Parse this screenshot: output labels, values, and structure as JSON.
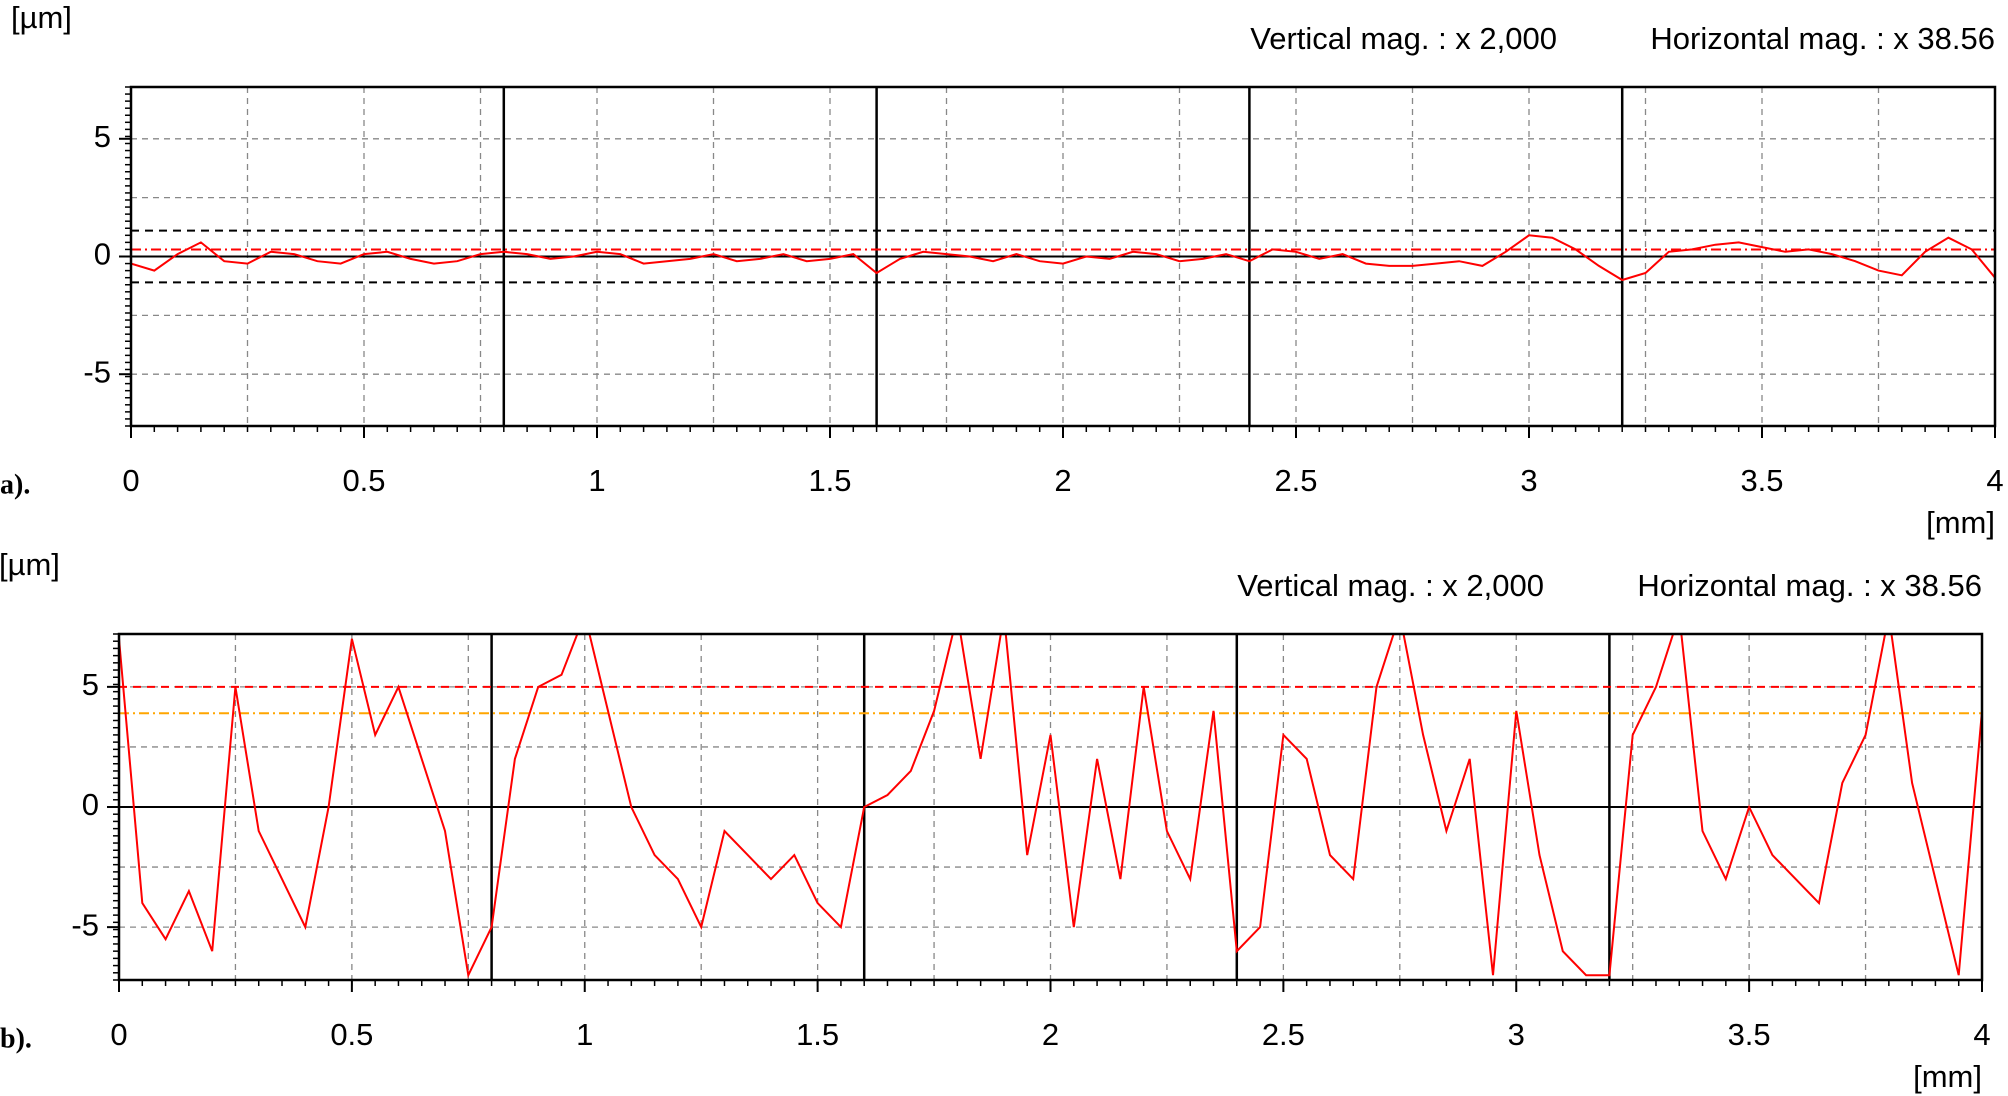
{
  "chart_data": [
    {
      "type": "line",
      "label": "a).",
      "ylabel": "[µm]",
      "xlabel": "[mm]",
      "annotations": [
        "Vertical mag. : x 2,000",
        "Horizontal mag. : x 38.56"
      ],
      "xlim": [
        0,
        4
      ],
      "ylim": [
        -7.2,
        7.2
      ],
      "xticks": [
        0,
        0.5,
        1,
        1.5,
        2,
        2.5,
        3,
        3.5,
        4
      ],
      "yticks": [
        -5,
        0,
        5
      ],
      "xgrid": [
        0.25,
        0.75,
        1.25,
        1.75,
        2.25,
        2.75,
        3.25,
        3.75
      ],
      "ygrid": [
        -2.5,
        2.5
      ],
      "grid": true,
      "vlines": [
        0.8,
        1.6,
        2.4,
        3.2
      ],
      "hlines": [
        {
          "value": 1.1,
          "color": "#000000",
          "dash": "dash"
        },
        {
          "value": -1.1,
          "color": "#000000",
          "dash": "dash"
        },
        {
          "value": 0.3,
          "color": "#ff0000",
          "dash": "dashdot"
        }
      ],
      "x": [
        0,
        0.05,
        0.1,
        0.15,
        0.2,
        0.25,
        0.3,
        0.35,
        0.4,
        0.45,
        0.5,
        0.55,
        0.6,
        0.65,
        0.7,
        0.75,
        0.8,
        0.85,
        0.9,
        0.95,
        1,
        1.05,
        1.1,
        1.15,
        1.2,
        1.25,
        1.3,
        1.35,
        1.4,
        1.45,
        1.5,
        1.55,
        1.6,
        1.65,
        1.7,
        1.75,
        1.8,
        1.85,
        1.9,
        1.95,
        2,
        2.05,
        2.1,
        2.15,
        2.2,
        2.25,
        2.3,
        2.35,
        2.4,
        2.45,
        2.5,
        2.55,
        2.6,
        2.65,
        2.7,
        2.75,
        2.8,
        2.85,
        2.9,
        2.95,
        3,
        3.05,
        3.1,
        3.15,
        3.2,
        3.25,
        3.3,
        3.35,
        3.4,
        3.45,
        3.5,
        3.55,
        3.6,
        3.65,
        3.7,
        3.75,
        3.8,
        3.85,
        3.9,
        3.95,
        4
      ],
      "series": [
        {
          "color": "#ff0000",
          "values": [
            -0.3,
            -0.6,
            0.1,
            0.6,
            -0.2,
            -0.3,
            0.2,
            0.1,
            -0.2,
            -0.3,
            0.1,
            0.2,
            -0.1,
            -0.3,
            -0.2,
            0.1,
            0.2,
            0.1,
            -0.1,
            0,
            0.2,
            0.1,
            -0.3,
            -0.2,
            -0.1,
            0.1,
            -0.2,
            -0.1,
            0.1,
            -0.2,
            -0.1,
            0.1,
            -0.7,
            -0.1,
            0.2,
            0.1,
            0,
            -0.2,
            0.1,
            -0.2,
            -0.3,
            0,
            -0.1,
            0.2,
            0.1,
            -0.2,
            -0.1,
            0.1,
            -0.2,
            0.3,
            0.2,
            -0.1,
            0.1,
            -0.3,
            -0.4,
            -0.4,
            -0.3,
            -0.2,
            -0.4,
            0.2,
            0.9,
            0.8,
            0.3,
            -0.4,
            -1.0,
            -0.7,
            0.2,
            0.3,
            0.5,
            0.6,
            0.4,
            0.2,
            0.3,
            0.1,
            -0.2,
            -0.6,
            -0.8,
            0.2,
            0.8,
            0.3,
            -0.9
          ]
        }
      ]
    },
    {
      "type": "line",
      "label": "b).",
      "ylabel": "[µm]",
      "xlabel": "[mm]",
      "annotations": [
        "Vertical mag. : x 2,000",
        "Horizontal mag. : x 38.56"
      ],
      "xlim": [
        0,
        4
      ],
      "ylim": [
        -7.2,
        7.2
      ],
      "xticks": [
        0,
        0.5,
        1,
        1.5,
        2,
        2.5,
        3,
        3.5,
        4
      ],
      "yticks": [
        -5,
        0,
        5
      ],
      "xgrid": [
        0.25,
        0.75,
        1.25,
        1.75,
        2.25,
        2.75,
        3.25,
        3.75
      ],
      "ygrid": [
        -2.5,
        2.5
      ],
      "grid": true,
      "vlines": [
        0.8,
        1.6,
        2.4,
        3.2
      ],
      "hlines": [
        {
          "value": 5,
          "color": "#ff0000",
          "dash": "dash"
        },
        {
          "value": 3.9,
          "color": "#ffa500",
          "dash": "dashdot"
        }
      ],
      "x": [
        0,
        0.05,
        0.1,
        0.15,
        0.2,
        0.25,
        0.3,
        0.35,
        0.4,
        0.45,
        0.5,
        0.55,
        0.6,
        0.65,
        0.7,
        0.75,
        0.8,
        0.85,
        0.9,
        0.95,
        1,
        1.05,
        1.1,
        1.15,
        1.2,
        1.25,
        1.3,
        1.35,
        1.4,
        1.45,
        1.5,
        1.55,
        1.6,
        1.65,
        1.7,
        1.75,
        1.8,
        1.85,
        1.9,
        1.95,
        2,
        2.05,
        2.1,
        2.15,
        2.2,
        2.25,
        2.3,
        2.35,
        2.4,
        2.45,
        2.5,
        2.55,
        2.6,
        2.65,
        2.7,
        2.75,
        2.8,
        2.85,
        2.9,
        2.95,
        3,
        3.05,
        3.1,
        3.15,
        3.2,
        3.25,
        3.3,
        3.35,
        3.4,
        3.45,
        3.5,
        3.55,
        3.6,
        3.65,
        3.7,
        3.75,
        3.8,
        3.85,
        3.9,
        3.95,
        4
      ],
      "series": [
        {
          "color": "#ff0000",
          "values": [
            7,
            -4,
            -5.5,
            -3.5,
            -6,
            5,
            -1,
            -3,
            -5,
            0,
            7,
            3,
            5,
            2,
            -1,
            -7,
            -5,
            2,
            5,
            5.5,
            8,
            4,
            0,
            -2,
            -3,
            -5,
            -1,
            -2,
            -3,
            -2,
            -4,
            -5,
            0,
            0.5,
            1.5,
            4,
            8,
            2,
            8,
            -2,
            3,
            -5,
            2,
            -3,
            5,
            -1,
            -3,
            4,
            -6,
            -5,
            3,
            2,
            -2,
            -3,
            5,
            8,
            3,
            -1,
            2,
            -7,
            4,
            -2,
            -6,
            -7,
            -7,
            3,
            5,
            8,
            -1,
            -3,
            0,
            -2,
            -3,
            -4,
            1,
            3,
            8,
            1,
            -3,
            -7,
            4
          ]
        }
      ]
    }
  ]
}
